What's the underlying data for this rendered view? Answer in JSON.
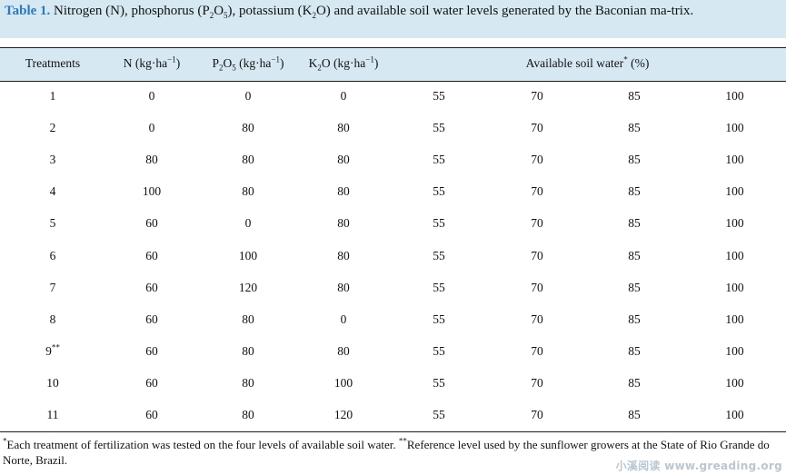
{
  "caption": {
    "label": "Table 1.",
    "parts": [
      "Nitrogen (N), phosphorus (P",
      "2",
      "O",
      "5",
      "), potassium (K",
      "2",
      "O) and available soil water levels generated by the Baconian ma-trix."
    ]
  },
  "header": {
    "treatments": "Treatments",
    "n_base": "N (kg·ha",
    "n_exp": "−1",
    "n_close": ")",
    "p_a": "P",
    "p_sub1": "2",
    "p_b": "O",
    "p_sub2": "5",
    "p_c": " (kg·ha",
    "p_exp": "−1",
    "p_close": ")",
    "k_a": "K",
    "k_sub": "2",
    "k_b": "O (kg·ha",
    "k_exp": "−1",
    "k_close": ")",
    "water_base": "Available soil water",
    "water_sup": "*",
    "water_unit": " (%)"
  },
  "rows": [
    {
      "t": "1",
      "mark": "",
      "n": "0",
      "p": "0",
      "k": "0",
      "w1": "55",
      "w2": "70",
      "w3": "85",
      "w4": "100"
    },
    {
      "t": "2",
      "mark": "",
      "n": "0",
      "p": "80",
      "k": "80",
      "w1": "55",
      "w2": "70",
      "w3": "85",
      "w4": "100"
    },
    {
      "t": "3",
      "mark": "",
      "n": "80",
      "p": "80",
      "k": "80",
      "w1": "55",
      "w2": "70",
      "w3": "85",
      "w4": "100"
    },
    {
      "t": "4",
      "mark": "",
      "n": "100",
      "p": "80",
      "k": "80",
      "w1": "55",
      "w2": "70",
      "w3": "85",
      "w4": "100"
    },
    {
      "t": "5",
      "mark": "",
      "n": "60",
      "p": "0",
      "k": "80",
      "w1": "55",
      "w2": "70",
      "w3": "85",
      "w4": "100"
    },
    {
      "t": "6",
      "mark": "",
      "n": "60",
      "p": "100",
      "k": "80",
      "w1": "55",
      "w2": "70",
      "w3": "85",
      "w4": "100"
    },
    {
      "t": "7",
      "mark": "",
      "n": "60",
      "p": "120",
      "k": "80",
      "w1": "55",
      "w2": "70",
      "w3": "85",
      "w4": "100"
    },
    {
      "t": "8",
      "mark": "",
      "n": "60",
      "p": "80",
      "k": "0",
      "w1": "55",
      "w2": "70",
      "w3": "85",
      "w4": "100"
    },
    {
      "t": "9",
      "mark": "**",
      "n": "60",
      "p": "80",
      "k": "80",
      "w1": "55",
      "w2": "70",
      "w3": "85",
      "w4": "100"
    },
    {
      "t": "10",
      "mark": "",
      "n": "60",
      "p": "80",
      "k": "100",
      "w1": "55",
      "w2": "70",
      "w3": "85",
      "w4": "100"
    },
    {
      "t": "11",
      "mark": "",
      "n": "60",
      "p": "80",
      "k": "120",
      "w1": "55",
      "w2": "70",
      "w3": "85",
      "w4": "100"
    }
  ],
  "footnotes": {
    "mark1": "*",
    "text1": "Each treatment of fertilization was tested on the four levels of available soil water. ",
    "mark2": "**",
    "text2": "Reference level used by the sunflower growers at the State of Rio Grande do Norte, Brazil."
  },
  "watermark": "小溪阅读 www.greading.org"
}
